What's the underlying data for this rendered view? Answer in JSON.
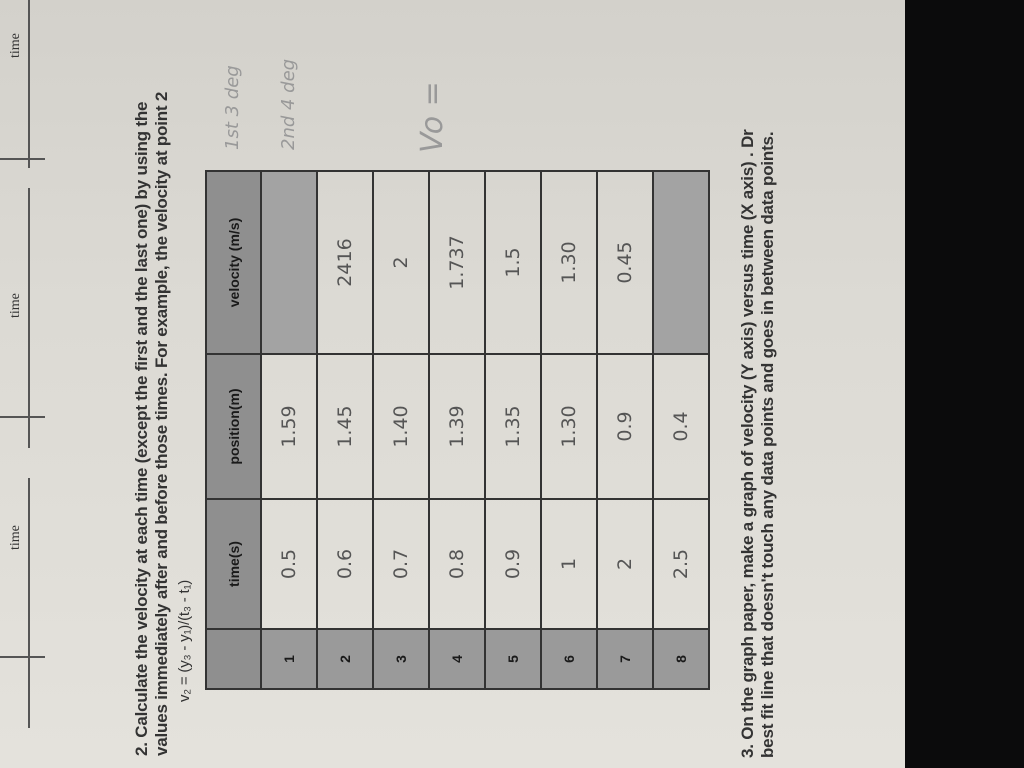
{
  "axis_labels": [
    "time",
    "time",
    "time"
  ],
  "question2": {
    "line1": "2. Calculate the velocity at each time (except the first and the last one) by using the",
    "line2": "values immediately after and before those times. For example, the velocity at point 2",
    "formula": "v₂ = (y₃ - y₁)/(t₃ - t₁)"
  },
  "table": {
    "headers": [
      "",
      "time(s)",
      "position(m)",
      "velocity (m/s)"
    ],
    "rows": [
      {
        "n": "1",
        "time": "0.5",
        "position": "1.59",
        "velocity": ""
      },
      {
        "n": "2",
        "time": "0.6",
        "position": "1.45",
        "velocity": "2416"
      },
      {
        "n": "3",
        "time": "0.7",
        "position": "1.40",
        "velocity": "2"
      },
      {
        "n": "4",
        "time": "0.8",
        "position": "1.39",
        "velocity": "1.737"
      },
      {
        "n": "5",
        "time": "0.9",
        "position": "1.35",
        "velocity": "1.5"
      },
      {
        "n": "6",
        "time": "1",
        "position": "1.30",
        "velocity": "1.30"
      },
      {
        "n": "7",
        "time": "2",
        "position": "0.9",
        "velocity": "0.45"
      },
      {
        "n": "8",
        "time": "2.5",
        "position": "0.4",
        "velocity": ""
      }
    ]
  },
  "margin_notes": [
    "1st 3 deg",
    "2nd 4 deg",
    "Vo ="
  ],
  "question3": {
    "line1": "3. On the graph paper, make a graph of velocity (Y axis)  versus time (X axis) . Dr",
    "line2": "best fit line that doesn't touch any data points and goes in between data points."
  }
}
